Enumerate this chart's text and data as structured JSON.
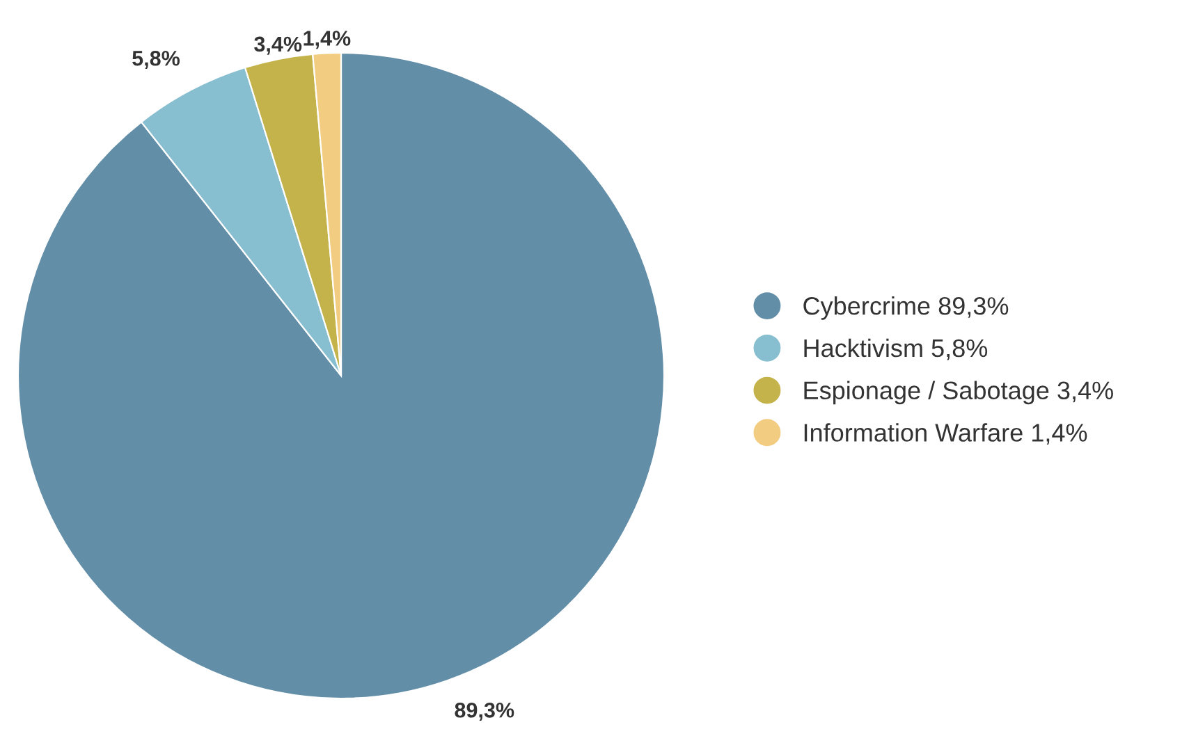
{
  "chart_data": {
    "type": "pie",
    "categories": [
      "Cybercrime",
      "Hacktivism",
      "Espionage / Sabotage",
      "Information Warfare"
    ],
    "values": [
      89.3,
      5.8,
      3.4,
      1.4
    ],
    "value_labels": [
      "89,3%",
      "5,8%",
      "3,4%",
      "1,4%"
    ],
    "colors": [
      "#628ea8",
      "#88bfd0",
      "#c4b34a",
      "#f2cc80"
    ],
    "legend": "right"
  }
}
